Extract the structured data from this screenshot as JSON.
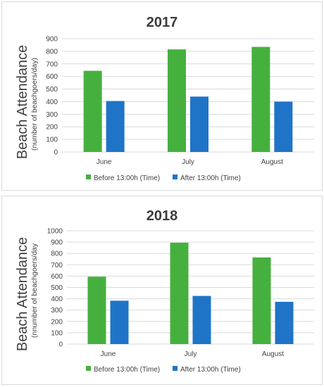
{
  "chart_data": [
    {
      "type": "bar",
      "title": "2017",
      "ylabel": "Beach Attendance",
      "ylabel_sub": "(number of beachgoers/day)",
      "xlabel": "",
      "categories": [
        "June",
        "July",
        "August"
      ],
      "ylim": [
        0,
        900
      ],
      "yticks": [
        0,
        100,
        200,
        300,
        400,
        500,
        600,
        700,
        800,
        900
      ],
      "grid": true,
      "legend_position": "bottom",
      "series": [
        {
          "name": "Before 13:00h (Time)",
          "color": "#46b03e",
          "values": [
            645,
            815,
            835
          ]
        },
        {
          "name": "After 13:00h (Time)",
          "color": "#1f74c8",
          "values": [
            405,
            440,
            400
          ]
        }
      ]
    },
    {
      "type": "bar",
      "title": "2018",
      "ylabel": "Beach Attendance",
      "ylabel_sub": "(nnumber of beachgoers/day",
      "xlabel": "",
      "categories": [
        "June",
        "July",
        "August"
      ],
      "ylim": [
        0,
        1000
      ],
      "yticks": [
        0,
        100,
        200,
        300,
        400,
        500,
        600,
        700,
        800,
        900,
        1000
      ],
      "grid": true,
      "legend_position": "bottom",
      "series": [
        {
          "name": "Before 13:00h (Time)",
          "color": "#46b03e",
          "values": [
            595,
            895,
            765
          ]
        },
        {
          "name": "After 13:00h (Time)",
          "color": "#1f74c8",
          "values": [
            383,
            425,
            373
          ]
        }
      ]
    }
  ]
}
